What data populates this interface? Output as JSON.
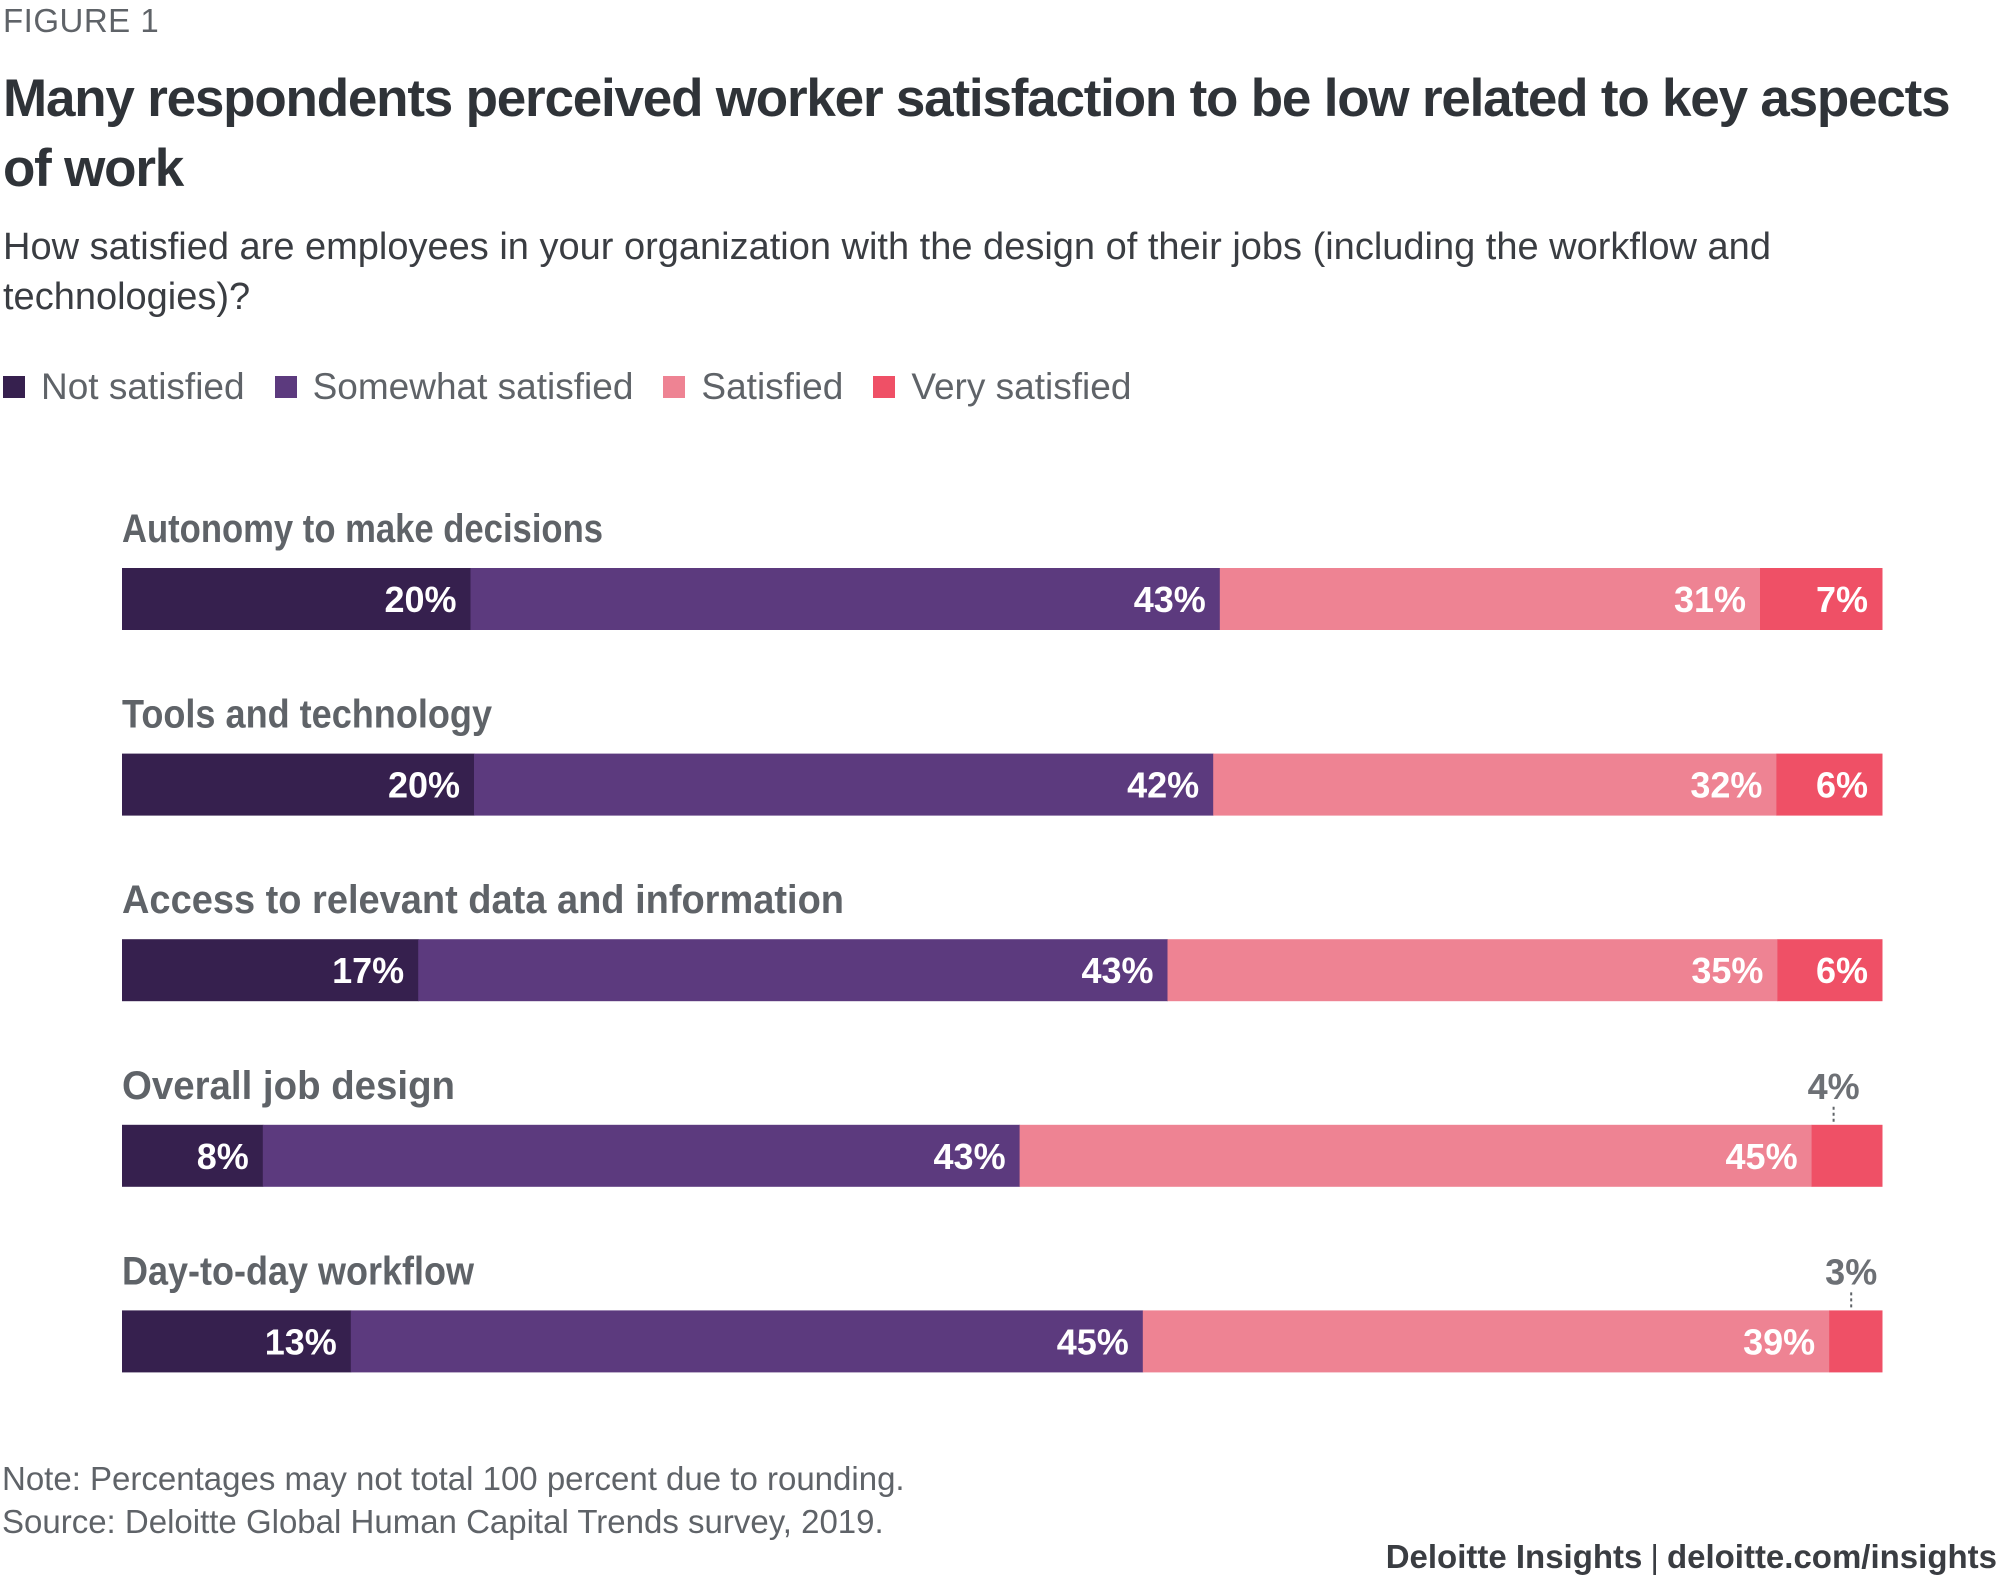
{
  "figure_label": "FIGURE 1",
  "title": "Many respondents perceived worker satisfaction to be low related to key aspects of work",
  "subtitle": "How satisfied are employees in your organization with the design of their jobs (including the workflow and technologies)?",
  "legend": [
    {
      "label": "Not satisfied",
      "color": "#36204e"
    },
    {
      "label": "Somewhat satisfied",
      "color": "#5c3a7e"
    },
    {
      "label": "Satisfied",
      "color": "#ee8393"
    },
    {
      "label": "Very satisfied",
      "color": "#ef5066"
    }
  ],
  "footer": {
    "note": "Note: Percentages may not total 100 percent due to rounding.",
    "source": "Source: Deloitte Global Human Capital Trends survey, 2019.",
    "brand": "Deloitte Insights",
    "separator": "|",
    "url": "deloitte.com/insights"
  },
  "chart_data": {
    "type": "bar",
    "orientation": "horizontal",
    "stacked": true,
    "title": "Many respondents perceived worker satisfaction to be low related to key aspects of work",
    "subtitle": "How satisfied are employees in your organization with the design of their jobs (including the workflow and technologies)?",
    "xlabel": "",
    "ylabel": "",
    "xlim": [
      0,
      100
    ],
    "grid": false,
    "legend_position": "top-left",
    "categories": [
      "Autonomy to make decisions",
      "Tools and technology",
      "Access to relevant data and information",
      "Overall job design",
      "Day-to-day workflow"
    ],
    "series": [
      {
        "name": "Not satisfied",
        "color": "#36204e",
        "values": [
          20,
          20,
          17,
          8,
          13
        ]
      },
      {
        "name": "Somewhat satisfied",
        "color": "#5c3a7e",
        "values": [
          43,
          42,
          43,
          43,
          45
        ]
      },
      {
        "name": "Satisfied",
        "color": "#ee8393",
        "values": [
          31,
          32,
          35,
          45,
          39
        ]
      },
      {
        "name": "Very satisfied",
        "color": "#ef5066",
        "values": [
          7,
          6,
          6,
          4,
          3
        ]
      }
    ],
    "value_suffix": "%",
    "outside_label_threshold": 5
  }
}
